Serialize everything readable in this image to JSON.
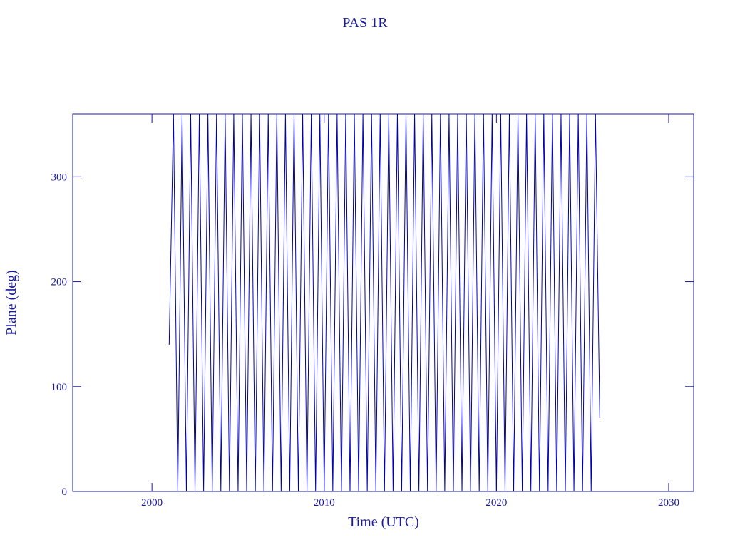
{
  "chart_data": {
    "type": "line",
    "title": "PAS 1R",
    "x_label": "Time (UTC)",
    "y_label": "Plane (deg)",
    "xlim": [
      1995.4,
      2031.45
    ],
    "xticks": [
      2000,
      2010,
      2020,
      2030
    ],
    "ylim": [
      0,
      360
    ],
    "yticks": [
      0,
      100,
      200,
      300
    ],
    "color": "#0000b4",
    "x": [
      2001,
      2001.25,
      2001.5,
      2001.75,
      2002,
      2002.25,
      2002.5,
      2002.75,
      2003,
      2003.25,
      2003.5,
      2003.75,
      2004,
      2004.25,
      2004.5,
      2004.75,
      2005,
      2005.25,
      2005.5,
      2005.75,
      2006,
      2006.25,
      2006.5,
      2006.75,
      2007,
      2007.25,
      2007.5,
      2007.75,
      2008,
      2008.25,
      2008.5,
      2008.75,
      2009,
      2009.25,
      2009.5,
      2009.75,
      2010,
      2010.25,
      2010.5,
      2010.75,
      2011,
      2011.25,
      2011.5,
      2011.75,
      2012,
      2012.25,
      2012.5,
      2012.75,
      2013,
      2013.25,
      2013.5,
      2013.75,
      2014,
      2014.25,
      2014.5,
      2014.75,
      2015,
      2015.25,
      2015.5,
      2015.75,
      2016,
      2016.25,
      2016.5,
      2016.75,
      2017,
      2017.25,
      2017.5,
      2017.75,
      2018,
      2018.25,
      2018.5,
      2018.75,
      2019,
      2019.25,
      2019.5,
      2019.75,
      2020,
      2020.25,
      2020.5,
      2020.75,
      2021,
      2021.25,
      2021.5,
      2021.75,
      2022,
      2022.25,
      2022.5,
      2022.75,
      2023,
      2023.25,
      2023.5,
      2023.75,
      2024,
      2024.25,
      2024.5,
      2024.75,
      2025,
      2025.25,
      2025.5,
      2025.75,
      2026
    ],
    "values": [
      140,
      360,
      0,
      360,
      0,
      360,
      0,
      360,
      0,
      360,
      0,
      360,
      0,
      360,
      0,
      360,
      0,
      360,
      0,
      360,
      0,
      360,
      0,
      360,
      0,
      360,
      0,
      360,
      0,
      360,
      0,
      360,
      0,
      360,
      0,
      360,
      0,
      360,
      0,
      360,
      0,
      360,
      0,
      360,
      0,
      360,
      0,
      360,
      0,
      360,
      0,
      360,
      0,
      360,
      0,
      360,
      0,
      360,
      0,
      360,
      0,
      360,
      0,
      360,
      0,
      360,
      0,
      360,
      0,
      360,
      0,
      360,
      0,
      360,
      0,
      360,
      0,
      360,
      0,
      360,
      0,
      360,
      0,
      360,
      0,
      360,
      0,
      360,
      0,
      360,
      0,
      360,
      0,
      360,
      0,
      360,
      0,
      360,
      0,
      360,
      70
    ]
  }
}
